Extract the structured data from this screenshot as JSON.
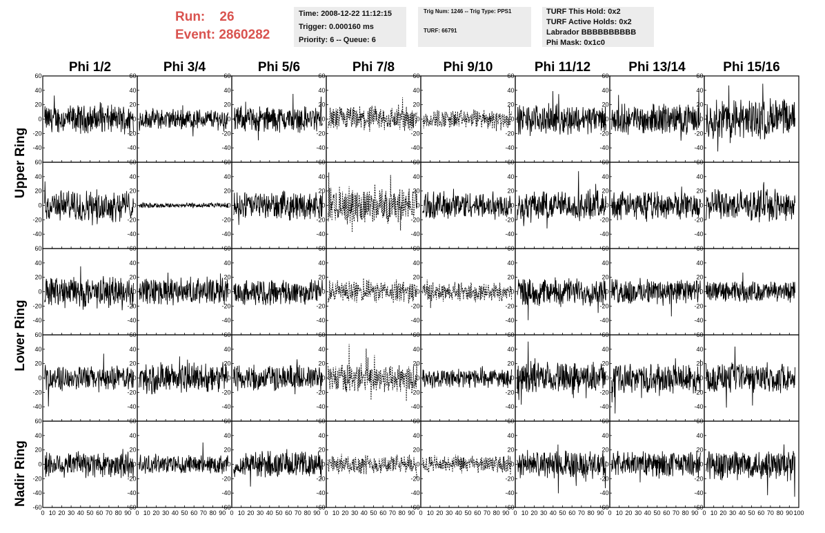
{
  "header": {
    "run_label": "Run:",
    "run_value": "26",
    "event_label": "Event:",
    "event_value": "2860282",
    "time": "Time: 2008-12-22 11:12:15",
    "trigger": "Trigger: 0.000160 ms",
    "priority_queue": "Priority: 6 -- Queue: 6",
    "trig_num_type": "Trig Num: 1246 -- Trig Type: PPS1",
    "turf": "TURF: 66791",
    "turf_this_hold": "TURF This Hold: 0x2",
    "turf_active_holds": "TURF Active Holds: 0x2",
    "labrador": "Labrador BBBBBBBBBB",
    "phi_mask": "Phi Mask: 0x1c0"
  },
  "columns": [
    "Phi 1/2",
    "Phi 3/4",
    "Phi 5/6",
    "Phi 7/8",
    "Phi 9/10",
    "Phi 11/12",
    "Phi 13/14",
    "Phi 15/16"
  ],
  "rings": [
    "Upper Ring",
    "Lower Ring",
    "Nadir Ring"
  ],
  "colors": {
    "run_event": "#d9534f",
    "info_box_bg": "#ececec",
    "trace": "#000000",
    "frame": "#000000"
  },
  "chart_data": {
    "type": "line",
    "rows": 5,
    "columns": 8,
    "xlim": [
      0,
      100
    ],
    "ylim": [
      -60,
      60
    ],
    "x_ticks": [
      0,
      10,
      20,
      30,
      40,
      50,
      60,
      70,
      80,
      90,
      100
    ],
    "x_tick_labels": [
      "0",
      "10",
      "20",
      "30",
      "40",
      "50",
      "60",
      "70",
      "80",
      "90",
      "100"
    ],
    "y_ticks": [
      60,
      40,
      20,
      0,
      -20,
      -40,
      -60
    ],
    "y_tick_labels": [
      "60",
      "40",
      "20",
      "0",
      "-20",
      "-40",
      "-60"
    ],
    "amplitudes": [
      [
        16,
        12,
        15,
        15,
        11,
        17,
        17,
        24
      ],
      [
        18,
        3,
        16,
        21,
        16,
        17,
        16,
        18
      ],
      [
        18,
        16,
        15,
        13,
        11,
        16,
        15,
        12
      ],
      [
        14,
        18,
        15,
        17,
        11,
        18,
        17,
        17
      ],
      [
        16,
        11,
        15,
        11,
        10,
        16,
        15,
        18
      ]
    ],
    "dashed": [
      [
        false,
        false,
        false,
        true,
        true,
        false,
        false,
        false
      ],
      [
        false,
        false,
        false,
        true,
        false,
        false,
        false,
        false
      ],
      [
        false,
        false,
        false,
        true,
        true,
        false,
        false,
        false
      ],
      [
        false,
        false,
        false,
        true,
        false,
        false,
        false,
        false
      ],
      [
        false,
        false,
        false,
        true,
        true,
        false,
        false,
        false
      ]
    ]
  }
}
